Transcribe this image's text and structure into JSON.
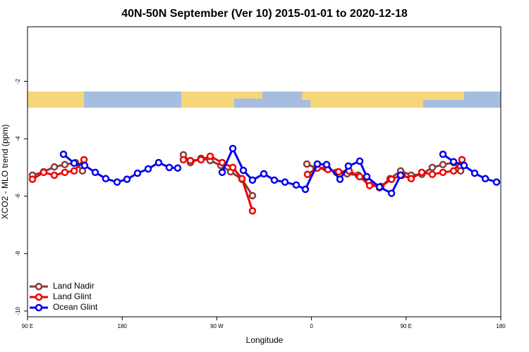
{
  "chart_data": {
    "type": "line",
    "title": "40N-50N September (Ver 10)   2015-01-01 to 2020-12-18",
    "x_label": "Longitude",
    "y_label": "XCO2 - MLO trend (ppm)",
    "xlim": [
      90,
      540
    ],
    "ylim": [
      -10.2,
      -0.1
    ],
    "xticks": [
      {
        "value": 90,
        "label": "90 E"
      },
      180,
      {
        "value": 270,
        "label": "90 W"
      },
      {
        "value": 360,
        "label": "0"
      },
      {
        "value": 450,
        "label": "90 E"
      },
      {
        "value": 540,
        "label": "180"
      }
    ],
    "yticks": [
      -2,
      -4,
      -6,
      -8,
      -10
    ],
    "legend": "bottom-left",
    "series": [
      {
        "name": "Land Nadir",
        "color": "#8b3a3a",
        "x": [
          94.7,
          105.4,
          115.5,
          125.5,
          135.6,
          142.3,
          null,
          238.2,
          244.9,
          255,
          263.7,
          273.8,
          283.1,
          293.9,
          303.9,
          null,
          355.6,
          364.3,
          373.7,
          383.7,
          393.8,
          404.5,
          414.6,
          424.7,
          434.7,
          444.8,
          454.8,
          464.9,
          474.9,
          485,
          495.1,
          501.8
        ],
        "values": [
          -5.27,
          -5.15,
          -4.98,
          -4.9,
          -4.83,
          -5.12,
          null,
          -4.56,
          -4.83,
          -4.68,
          -4.76,
          -4.93,
          -5.15,
          -5.41,
          -5.98,
          null,
          -4.88,
          -5.02,
          -5.02,
          -5.17,
          -5.22,
          -5.27,
          -5.51,
          -5.71,
          -5.39,
          -5.12,
          -5.27,
          -5.24,
          -5,
          -4.9,
          -4.83,
          -5.12
        ]
      },
      {
        "name": "Land Glint",
        "color": "#ee0000",
        "x": [
          94.7,
          105.4,
          115.5,
          125.5,
          134.3,
          143.7,
          null,
          238.2,
          244.9,
          255,
          263.7,
          275.1,
          285.2,
          293.9,
          303.9,
          null,
          356.2,
          365.6,
          375.7,
          385.8,
          395.8,
          405.9,
          415.3,
          426,
          436.1,
          446.1,
          454.8,
          464.9,
          474.9,
          485,
          495.1,
          503.1
        ],
        "values": [
          -5.41,
          -5.17,
          -5.27,
          -5.17,
          -5.12,
          -4.73,
          null,
          -4.73,
          -4.76,
          -4.73,
          -4.61,
          -4.83,
          -5,
          -5.39,
          -6.51,
          null,
          -5.24,
          -5.02,
          -5.07,
          -5.15,
          -5.12,
          -5.32,
          -5.63,
          -5.66,
          -5.41,
          -5.27,
          -5.39,
          -5.17,
          -5.24,
          -5.17,
          -5.12,
          -4.73
        ]
      },
      {
        "name": "Ocean Glint",
        "color": "#0000ee",
        "x": [
          124.2,
          134.3,
          144.3,
          154.4,
          164.4,
          175.2,
          184.6,
          194.6,
          204.7,
          214.7,
          224.8,
          232.8,
          null,
          275.1,
          285.2,
          295.2,
          303.9,
          314.7,
          324.7,
          334.8,
          345.5,
          354.2,
          365.6,
          374.4,
          387.1,
          395.1,
          405.9,
          412.6,
          424.7,
          436.1,
          444.8,
          null,
          485,
          495.1,
          505.1,
          515.2,
          525.3,
          536
        ],
        "values": [
          -4.54,
          -4.85,
          -4.93,
          -5.17,
          -5.39,
          -5.51,
          -5.41,
          -5.2,
          -5.05,
          -4.83,
          -5,
          -5.02,
          null,
          -5.17,
          -4.34,
          -5.1,
          -5.44,
          -5.22,
          -5.44,
          -5.51,
          -5.61,
          -5.76,
          -4.88,
          -4.9,
          -5.41,
          -4.95,
          -4.78,
          -5.32,
          -5.68,
          -5.9,
          -5.27,
          null,
          -4.54,
          -4.8,
          -4.93,
          -5.2,
          -5.39,
          -5.51
        ]
      }
    ]
  }
}
